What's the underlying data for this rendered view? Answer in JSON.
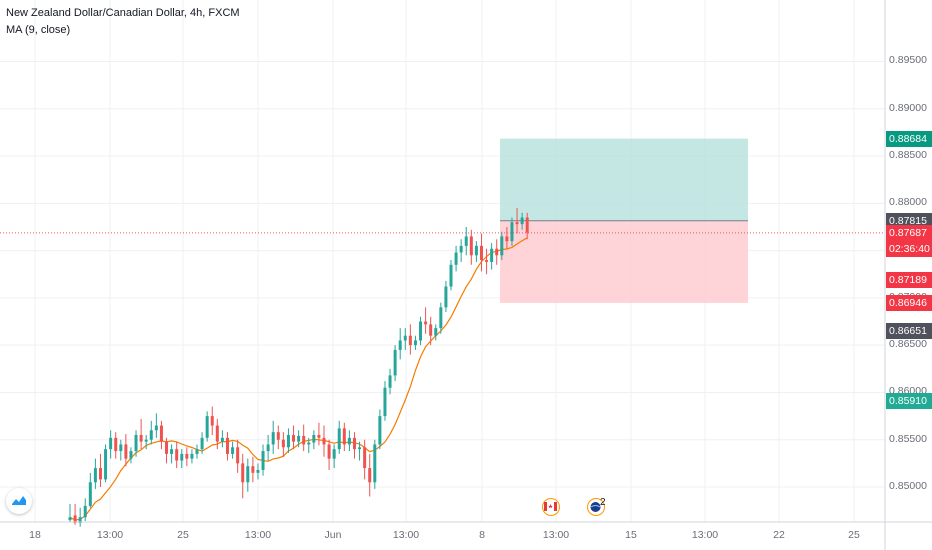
{
  "header": {
    "symbol_line": "New Zealand Dollar/Canadian Dollar, 4h, FXCM",
    "indicator_line": "MA (9, close)"
  },
  "chart_data": {
    "type": "candlestick",
    "y_ticks": [
      "0.89500",
      "0.89000",
      "0.88500",
      "0.88000",
      "0.87500",
      "0.87000",
      "0.86500",
      "0.86000",
      "0.85500",
      "0.85000"
    ],
    "y_tick_values": [
      0.895,
      0.89,
      0.885,
      0.88,
      0.875,
      0.87,
      0.865,
      0.86,
      0.855,
      0.85
    ],
    "ylim": [
      0.8463,
      0.9015
    ],
    "x_ticks": [
      "18",
      "13:00",
      "25",
      "13:00",
      "Jun",
      "13:00",
      "8",
      "13:00",
      "15",
      "13:00",
      "22",
      "25"
    ],
    "price_tags": [
      {
        "label": "0.88684",
        "value": 0.88684,
        "color": "#089981"
      },
      {
        "label": "0.87815",
        "value": 0.87815,
        "color": "#4f525c"
      },
      {
        "label": "0.87687",
        "value": 0.87687,
        "color": "#f23645"
      },
      {
        "label": "02:36:40",
        "value": 0.87687,
        "color": "#f23645"
      },
      {
        "label": "0.87189",
        "value": 0.87189,
        "color": "#f23645"
      },
      {
        "label": "0.86946",
        "value": 0.86946,
        "color": "#f23645"
      },
      {
        "label": "0.86651",
        "value": 0.86651,
        "color": "#4f525c"
      },
      {
        "label": "0.85910",
        "value": 0.8591,
        "color": "#22ab94"
      }
    ],
    "position": {
      "entry": 0.87815,
      "target": 0.88684,
      "stop": 0.86946
    },
    "last_price": 0.87687,
    "colors": {
      "up": "#26a69a",
      "down": "#ef5350",
      "ma": "#f57c00",
      "profit": "#b2dfdb",
      "loss": "#ffcdd2"
    },
    "events": [
      {
        "icon": "canada-flag-icon"
      },
      {
        "icon": "globe-event-icon",
        "count": "2"
      }
    ],
    "candles": [
      [
        0.8465,
        0.8482,
        0.8468,
        0.8463
      ],
      [
        0.847,
        0.8482,
        0.8462,
        0.846
      ],
      [
        0.8462,
        0.8478,
        0.8468,
        0.8458
      ],
      [
        0.8468,
        0.8488,
        0.848,
        0.8464
      ],
      [
        0.848,
        0.8515,
        0.8505,
        0.8478
      ],
      [
        0.8505,
        0.853,
        0.852,
        0.8498
      ],
      [
        0.852,
        0.8535,
        0.8508,
        0.85
      ],
      [
        0.8508,
        0.8545,
        0.854,
        0.8505
      ],
      [
        0.854,
        0.856,
        0.8552,
        0.853
      ],
      [
        0.8552,
        0.8558,
        0.8538,
        0.853
      ],
      [
        0.8538,
        0.855,
        0.8545,
        0.8528
      ],
      [
        0.8545,
        0.8556,
        0.853,
        0.8522
      ],
      [
        0.853,
        0.8542,
        0.8538,
        0.8525
      ],
      [
        0.8538,
        0.856,
        0.8555,
        0.8532
      ],
      [
        0.8555,
        0.8572,
        0.8548,
        0.854
      ],
      [
        0.8548,
        0.8555,
        0.855,
        0.854
      ],
      [
        0.855,
        0.857,
        0.856,
        0.8545
      ],
      [
        0.856,
        0.8578,
        0.8565,
        0.8552
      ],
      [
        0.8565,
        0.857,
        0.8548,
        0.854
      ],
      [
        0.8548,
        0.8552,
        0.8535,
        0.8525
      ],
      [
        0.8535,
        0.8545,
        0.854,
        0.8525
      ],
      [
        0.854,
        0.8548,
        0.8528,
        0.852
      ],
      [
        0.8528,
        0.854,
        0.8535,
        0.852
      ],
      [
        0.8535,
        0.8542,
        0.853,
        0.8522
      ],
      [
        0.853,
        0.854,
        0.8535,
        0.8525
      ],
      [
        0.8535,
        0.8545,
        0.854,
        0.853
      ],
      [
        0.854,
        0.8558,
        0.8552,
        0.8535
      ],
      [
        0.8552,
        0.858,
        0.8575,
        0.8548
      ],
      [
        0.8575,
        0.8585,
        0.8565,
        0.8555
      ],
      [
        0.8565,
        0.8572,
        0.8548,
        0.854
      ],
      [
        0.8548,
        0.856,
        0.8552,
        0.8542
      ],
      [
        0.8552,
        0.8558,
        0.8535,
        0.8528
      ],
      [
        0.8535,
        0.8548,
        0.8542,
        0.853
      ],
      [
        0.8542,
        0.855,
        0.8525,
        0.8515
      ],
      [
        0.8525,
        0.8535,
        0.8505,
        0.8488
      ],
      [
        0.8505,
        0.853,
        0.8522,
        0.8495
      ],
      [
        0.8522,
        0.8532,
        0.8515,
        0.8505
      ],
      [
        0.8515,
        0.8525,
        0.8518,
        0.8508
      ],
      [
        0.8518,
        0.8545,
        0.8538,
        0.8512
      ],
      [
        0.8538,
        0.8555,
        0.8545,
        0.8528
      ],
      [
        0.8545,
        0.857,
        0.8558,
        0.8535
      ],
      [
        0.8558,
        0.8565,
        0.855,
        0.854
      ],
      [
        0.855,
        0.8558,
        0.8542,
        0.8532
      ],
      [
        0.8542,
        0.8562,
        0.8555,
        0.8536
      ],
      [
        0.8555,
        0.8565,
        0.8548,
        0.854
      ],
      [
        0.8548,
        0.856,
        0.8554,
        0.8542
      ],
      [
        0.8554,
        0.8566,
        0.8545,
        0.8538
      ],
      [
        0.8545,
        0.8552,
        0.8547,
        0.8536
      ],
      [
        0.8547,
        0.856,
        0.8555,
        0.854
      ],
      [
        0.8555,
        0.8568,
        0.8552,
        0.8544
      ],
      [
        0.8552,
        0.8565,
        0.8545,
        0.8532
      ],
      [
        0.8545,
        0.855,
        0.853,
        0.8518
      ],
      [
        0.853,
        0.8545,
        0.854,
        0.852
      ],
      [
        0.854,
        0.857,
        0.8562,
        0.8535
      ],
      [
        0.8562,
        0.8568,
        0.8545,
        0.8538
      ],
      [
        0.8545,
        0.856,
        0.8552,
        0.8538
      ],
      [
        0.8552,
        0.8558,
        0.854,
        0.853
      ],
      [
        0.854,
        0.8548,
        0.8542,
        0.8528
      ],
      [
        0.8542,
        0.855,
        0.852,
        0.8508
      ],
      [
        0.852,
        0.8535,
        0.8505,
        0.849
      ],
      [
        0.8505,
        0.855,
        0.8545,
        0.8498
      ],
      [
        0.8545,
        0.8582,
        0.8575,
        0.854
      ],
      [
        0.8575,
        0.8612,
        0.8605,
        0.857
      ],
      [
        0.8605,
        0.8625,
        0.8618,
        0.8598
      ],
      [
        0.8618,
        0.865,
        0.8645,
        0.8612
      ],
      [
        0.8645,
        0.8668,
        0.8655,
        0.8635
      ],
      [
        0.8655,
        0.8668,
        0.866,
        0.8645
      ],
      [
        0.866,
        0.8672,
        0.865,
        0.864
      ],
      [
        0.865,
        0.866,
        0.8655,
        0.8645
      ],
      [
        0.8655,
        0.868,
        0.8675,
        0.865
      ],
      [
        0.8675,
        0.869,
        0.8672,
        0.8662
      ],
      [
        0.8672,
        0.868,
        0.866,
        0.865
      ],
      [
        0.866,
        0.8672,
        0.8668,
        0.8655
      ],
      [
        0.8668,
        0.8695,
        0.869,
        0.8662
      ],
      [
        0.869,
        0.8718,
        0.8712,
        0.8685
      ],
      [
        0.8712,
        0.874,
        0.8735,
        0.8708
      ],
      [
        0.8735,
        0.8755,
        0.8748,
        0.8728
      ],
      [
        0.8748,
        0.8762,
        0.8755,
        0.8738
      ],
      [
        0.8755,
        0.8775,
        0.8765,
        0.8745
      ],
      [
        0.8765,
        0.8772,
        0.8745,
        0.8735
      ],
      [
        0.8745,
        0.876,
        0.8755,
        0.8738
      ],
      [
        0.8755,
        0.8768,
        0.874,
        0.8728
      ],
      [
        0.874,
        0.8752,
        0.8738,
        0.8725
      ],
      [
        0.8738,
        0.8758,
        0.8752,
        0.873
      ],
      [
        0.8752,
        0.8762,
        0.8745,
        0.8735
      ],
      [
        0.8745,
        0.877,
        0.8765,
        0.874
      ],
      [
        0.8765,
        0.8775,
        0.876,
        0.8752
      ],
      [
        0.876,
        0.8785,
        0.878,
        0.8755
      ],
      [
        0.878,
        0.8795,
        0.8778,
        0.8768
      ],
      [
        0.8778,
        0.879,
        0.8785,
        0.8772
      ],
      [
        0.8785,
        0.879,
        0.8769,
        0.8762
      ]
    ]
  }
}
